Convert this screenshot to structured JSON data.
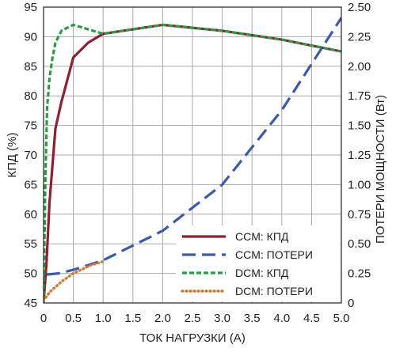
{
  "chart_data": {
    "type": "line",
    "title": "",
    "xlabel": "ТОК НАГРУЗКИ (А)",
    "ylabel_left": "КПД (%)",
    "ylabel_right": "ПОТЕРИ МОЩНОСТИ (Вт)",
    "xlim": [
      0,
      5.0
    ],
    "ylim_left": [
      45,
      95
    ],
    "ylim_right": [
      0,
      2.5
    ],
    "x_ticks": [
      "0",
      "0.5",
      "1.0",
      "1.5",
      "2.0",
      "2.5",
      "3.0",
      "3.5",
      "4.0",
      "4.5",
      "5.0"
    ],
    "y_left_ticks": [
      "45",
      "50",
      "55",
      "60",
      "65",
      "70",
      "75",
      "80",
      "85",
      "90",
      "95"
    ],
    "y_right_ticks": [
      "0",
      "0.25",
      "0.50",
      "0.75",
      "1.00",
      "1.25",
      "1.50",
      "1.75",
      "2.00",
      "2.25",
      "2.50"
    ],
    "grid": true,
    "legend_position": "bottom-right",
    "series": [
      {
        "name": "CCM: КПД",
        "axis": "left",
        "color": "#8b2131",
        "style": "solid",
        "x": [
          0.0,
          0.05,
          0.1,
          0.2,
          0.3,
          0.5,
          0.75,
          1.0,
          2.0,
          3.0,
          4.0,
          5.0
        ],
        "y": [
          45,
          52,
          62,
          74.5,
          79,
          86.5,
          89,
          90.5,
          92,
          91,
          89.5,
          87.5
        ]
      },
      {
        "name": "CCM: ПОТЕРИ",
        "axis": "right",
        "color": "#3c5aa8",
        "style": "longdash",
        "x": [
          0.05,
          0.25,
          0.5,
          1.0,
          2.0,
          3.0,
          4.0,
          5.0
        ],
        "y": [
          0.24,
          0.25,
          0.28,
          0.36,
          0.61,
          1.0,
          1.63,
          2.41
        ]
      },
      {
        "name": "DCM: КПД",
        "axis": "left",
        "color": "#2e9a47",
        "style": "shortdash",
        "x": [
          0.0,
          0.03,
          0.06,
          0.1,
          0.15,
          0.2,
          0.3,
          0.5,
          1.0,
          2.0,
          3.0,
          4.0,
          5.0
        ],
        "y": [
          45,
          66,
          78,
          83,
          86.5,
          89,
          91,
          92,
          90.5,
          92,
          91,
          89.5,
          87.5
        ]
      },
      {
        "name": "DCM: ПОТЕРИ",
        "axis": "right",
        "color": "#c97b3c",
        "style": "dotted",
        "x": [
          0.0,
          0.1,
          0.3,
          0.5,
          0.8,
          1.0
        ],
        "y": [
          0.02,
          0.09,
          0.18,
          0.25,
          0.32,
          0.35
        ]
      }
    ]
  }
}
